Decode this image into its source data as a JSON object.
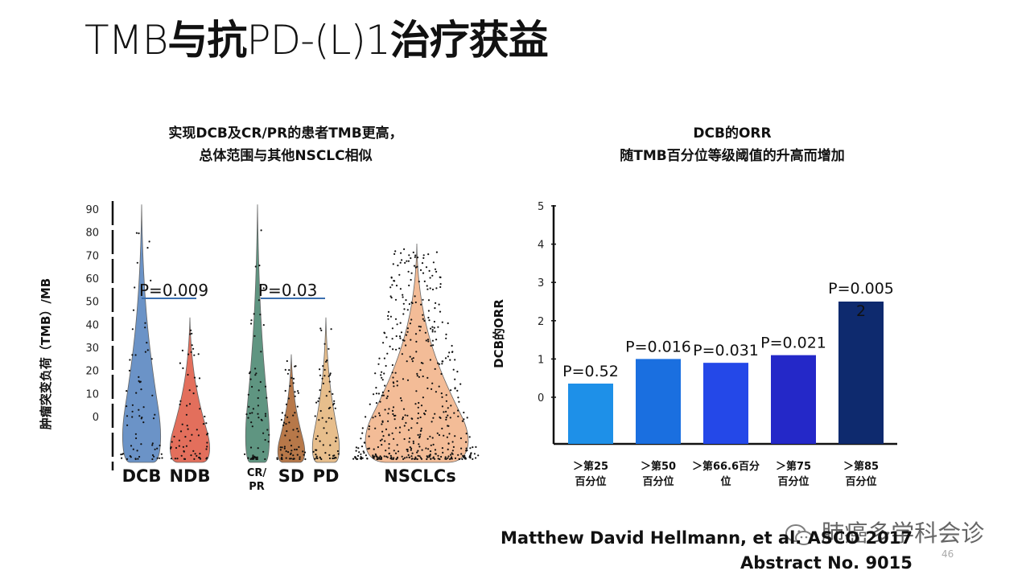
{
  "slide": {
    "title_parts": [
      "TMB",
      "与抗",
      "PD-(L)1",
      "治疗获益"
    ],
    "page_number": "46",
    "citation_line1": "Matthew David Hellmann, et al.  ASCO 2017",
    "citation_line2": "Abstract No. 9015",
    "watermark": "肺癌多学科会诊"
  },
  "chart_data": [
    {
      "type": "violin",
      "title_lines": [
        "实现DCB及CR/PR的患者TMB更高，",
        "总体范围与其他NSCLC相似"
      ],
      "ylabel": "肿瘤突变负荷（TMB）/MB",
      "yticks": [
        "90",
        "80",
        "70",
        "60",
        "50",
        "40",
        "30",
        "20",
        "10",
        "0"
      ],
      "groups": [
        {
          "name": "DCB",
          "color": "#5b88c2",
          "max": 92
        },
        {
          "name": "NDB",
          "color": "#e0604b",
          "max": 43
        },
        {
          "name": "CR/PR",
          "color": "#4e8a74",
          "max": 92
        },
        {
          "name": "SD",
          "color": "#b06a36",
          "max": 27
        },
        {
          "name": "PD",
          "color": "#e5b880",
          "max": 43
        },
        {
          "name": "NSCLCs",
          "color": "#f2b58c",
          "max": 75
        }
      ],
      "comparisons": [
        {
          "groups": [
            "DCB",
            "NDB"
          ],
          "label": "P=0.009"
        },
        {
          "groups": [
            "CR/PR",
            "SD",
            "PD"
          ],
          "label": "P=0.03"
        }
      ]
    },
    {
      "type": "bar",
      "title_lines": [
        "DCB的ORR",
        "随TMB百分位等级阈值的升高而增加"
      ],
      "ylabel": "DCB的ORR",
      "yticks": [
        "0",
        "1",
        "2",
        "3",
        "4",
        "5"
      ],
      "categories": [
        "＞第25百分位",
        "＞第50百分位",
        "＞第66.6百分位",
        "＞第75百分位",
        "＞第85百分位"
      ],
      "category_lines": [
        [
          "＞第25",
          "百分位"
        ],
        [
          "＞第50",
          "百分位"
        ],
        [
          "＞第66.6百分",
          "位"
        ],
        [
          "＞第75",
          "百分位"
        ],
        [
          "＞第85",
          "百分位"
        ]
      ],
      "values": [
        0.0,
        1.0,
        0.9,
        1.1,
        2.5
      ],
      "p_values": [
        "P=0.52",
        "P=0.016",
        "P=0.031",
        "P=0.021",
        "P=0.0052"
      ],
      "colors": [
        "#1e90e8",
        "#1a6fe0",
        "#2448e8",
        "#2428c8",
        "#0e2a6e"
      ],
      "ylim": [
        0,
        5
      ]
    }
  ]
}
